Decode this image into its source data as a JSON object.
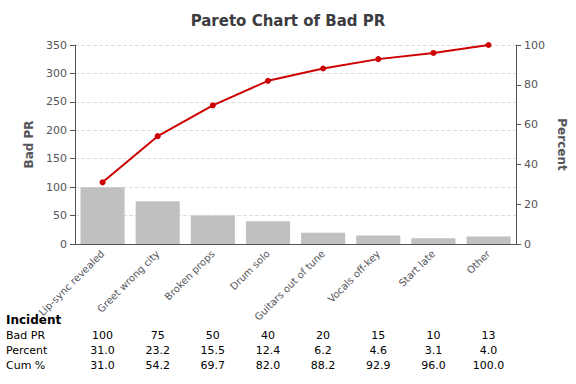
{
  "chart_data": {
    "type": "bar",
    "title": "Pareto Chart of Bad PR",
    "xlabel": "Incident",
    "ylabel": "Bad PR",
    "y2label": "Percent",
    "categories": [
      "Lip-sync revealed",
      "Greet wrong city",
      "Broken props",
      "Drum solo",
      "Guitars out of tune",
      "Vocals off-key",
      "Start late",
      "Other"
    ],
    "series": [
      {
        "type": "bar",
        "color": "#c0c0c0",
        "values": [
          100,
          75,
          50,
          40,
          20,
          15,
          10,
          13
        ]
      },
      {
        "type": "line",
        "axis": "y2",
        "color": "#cc0000",
        "marker": "circle",
        "line_style": "solid",
        "values": [
          31.0,
          54.2,
          69.7,
          82.0,
          88.2,
          92.9,
          96.0,
          100.0
        ]
      }
    ],
    "ylim": [
      0,
      350
    ],
    "yticks": [
      0,
      50,
      100,
      150,
      200,
      250,
      300,
      350
    ],
    "y2lim": [
      0,
      100
    ],
    "y2ticks": [
      0,
      20,
      40,
      60,
      80,
      100
    ],
    "grid": true,
    "table": {
      "rows": [
        "Bad PR",
        "Percent",
        "Cum %"
      ],
      "cells": [
        [
          "100",
          "75",
          "50",
          "40",
          "20",
          "15",
          "10",
          "13"
        ],
        [
          "31.0",
          "23.2",
          "15.5",
          "12.4",
          "6.2",
          "4.6",
          "3.1",
          "4.0"
        ],
        [
          "31.0",
          "54.2",
          "69.7",
          "82.0",
          "88.2",
          "92.9",
          "96.0",
          "100.0"
        ]
      ]
    }
  }
}
